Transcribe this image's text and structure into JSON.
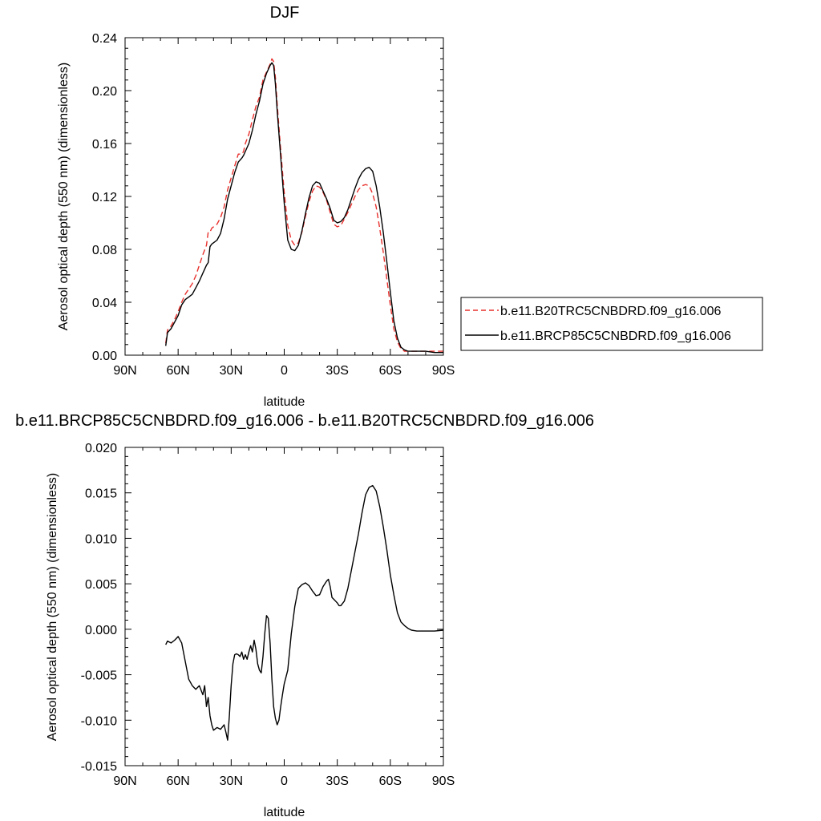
{
  "chart_data": [
    {
      "type": "line",
      "title": "DJF",
      "xlabel": "latitude",
      "ylabel": "Aerosol optical depth (550 nm) (dimensionless)",
      "xlim": [
        90,
        -90
      ],
      "ylim": [
        0.0,
        0.24
      ],
      "xticks": [
        90,
        60,
        30,
        0,
        -30,
        -60,
        -90
      ],
      "xtick_labels": [
        "90N",
        "60N",
        "30N",
        "0",
        "30S",
        "60S",
        "90S"
      ],
      "yticks": [
        0.0,
        0.04,
        0.08,
        0.12,
        0.16,
        0.2,
        0.24
      ],
      "ytick_labels": [
        "0.00",
        "0.04",
        "0.08",
        "0.12",
        "0.16",
        "0.20",
        "0.24"
      ],
      "legend_position": "right",
      "series": [
        {
          "name": "b.e11.B20TRC5CNBDRD.f09_g16.006",
          "color": "#e8302c",
          "dash": "dashed",
          "x": [
            67,
            66,
            64,
            62,
            60,
            58,
            56,
            54,
            52,
            50,
            48,
            46,
            44,
            43,
            42,
            41,
            40,
            38,
            36,
            34,
            32,
            30,
            28,
            26,
            24,
            23,
            22,
            20,
            18,
            16,
            14,
            12,
            10,
            8,
            7,
            6,
            5,
            4,
            2,
            0,
            -2,
            -4,
            -6,
            -8,
            -10,
            -12,
            -14,
            -16,
            -18,
            -20,
            -22,
            -24,
            -26,
            -28,
            -30,
            -32,
            -34,
            -36,
            -38,
            -40,
            -42,
            -44,
            -46,
            -48,
            -50,
            -52,
            -54,
            -56,
            -58,
            -60,
            -62,
            -64,
            -66,
            -68,
            -70,
            -72,
            -75,
            -80,
            -85,
            -90
          ],
          "y": [
            0.009,
            0.019,
            0.022,
            0.027,
            0.033,
            0.04,
            0.046,
            0.05,
            0.054,
            0.06,
            0.068,
            0.076,
            0.083,
            0.093,
            0.093,
            0.096,
            0.097,
            0.099,
            0.104,
            0.112,
            0.125,
            0.134,
            0.143,
            0.152,
            0.152,
            0.154,
            0.16,
            0.167,
            0.178,
            0.188,
            0.195,
            0.208,
            0.214,
            0.22,
            0.224,
            0.222,
            0.21,
            0.19,
            0.155,
            0.123,
            0.098,
            0.087,
            0.083,
            0.085,
            0.093,
            0.105,
            0.116,
            0.124,
            0.128,
            0.127,
            0.123,
            0.117,
            0.108,
            0.099,
            0.097,
            0.098,
            0.103,
            0.108,
            0.114,
            0.12,
            0.125,
            0.128,
            0.129,
            0.128,
            0.122,
            0.112,
            0.096,
            0.078,
            0.058,
            0.038,
            0.02,
            0.01,
            0.005,
            0.003,
            0.003,
            0.003,
            0.003,
            0.003,
            0.003,
            0.003
          ]
        },
        {
          "name": "b.e11.BRCP85C5CNBDRD.f09_g16.006",
          "color": "#000000",
          "dash": "solid",
          "x": [
            67,
            66,
            64,
            62,
            60,
            58,
            56,
            54,
            52,
            50,
            48,
            46,
            44,
            43,
            42,
            41,
            40,
            38,
            36,
            34,
            32,
            30,
            28,
            26,
            24,
            23,
            22,
            20,
            18,
            16,
            14,
            12,
            10,
            8,
            7,
            6,
            5,
            4,
            2,
            0,
            -2,
            -4,
            -6,
            -8,
            -10,
            -12,
            -14,
            -16,
            -18,
            -20,
            -22,
            -24,
            -26,
            -28,
            -30,
            -32,
            -34,
            -36,
            -38,
            -40,
            -42,
            -44,
            -46,
            -48,
            -50,
            -52,
            -54,
            -56,
            -58,
            -60,
            -62,
            -64,
            -66,
            -68,
            -70,
            -72,
            -75,
            -80,
            -85,
            -90
          ],
          "y": [
            0.007,
            0.017,
            0.02,
            0.025,
            0.03,
            0.038,
            0.042,
            0.044,
            0.046,
            0.051,
            0.056,
            0.062,
            0.068,
            0.07,
            0.082,
            0.084,
            0.085,
            0.087,
            0.092,
            0.103,
            0.118,
            0.128,
            0.138,
            0.146,
            0.149,
            0.151,
            0.154,
            0.16,
            0.17,
            0.182,
            0.192,
            0.205,
            0.213,
            0.219,
            0.221,
            0.219,
            0.205,
            0.185,
            0.15,
            0.115,
            0.087,
            0.08,
            0.079,
            0.083,
            0.094,
            0.107,
            0.119,
            0.128,
            0.131,
            0.13,
            0.124,
            0.118,
            0.111,
            0.102,
            0.1,
            0.101,
            0.104,
            0.11,
            0.118,
            0.126,
            0.133,
            0.138,
            0.141,
            0.142,
            0.139,
            0.128,
            0.112,
            0.093,
            0.071,
            0.048,
            0.026,
            0.013,
            0.006,
            0.004,
            0.003,
            0.003,
            0.003,
            0.003,
            0.002,
            0.002
          ]
        }
      ]
    },
    {
      "type": "line",
      "title": "b.e11.BRCP85C5CNBDRD.f09_g16.006 - b.e11.B20TRC5CNBDRD.f09_g16.006",
      "xlabel": "latitude",
      "ylabel": "Aerosol optical depth (550 nm) (dimensionless)",
      "xlim": [
        90,
        -90
      ],
      "ylim": [
        -0.015,
        0.02
      ],
      "xticks": [
        90,
        60,
        30,
        0,
        -30,
        -60,
        -90
      ],
      "xtick_labels": [
        "90N",
        "60N",
        "30N",
        "0",
        "30S",
        "60S",
        "90S"
      ],
      "yticks": [
        -0.015,
        -0.01,
        -0.005,
        0.0,
        0.005,
        0.01,
        0.015,
        0.02
      ],
      "ytick_labels": [
        "-0.015",
        "-0.010",
        "-0.005",
        "0.000",
        "0.005",
        "0.010",
        "0.015",
        "0.020"
      ],
      "series": [
        {
          "color": "#000000",
          "dash": "solid",
          "x": [
            67,
            66,
            64,
            62,
            60,
            58,
            56,
            54,
            52,
            50,
            48,
            46,
            45,
            44,
            43,
            42,
            41,
            40,
            38,
            36,
            34,
            33,
            32,
            31,
            30,
            29,
            28,
            27,
            26,
            25,
            24,
            23,
            22,
            21,
            20,
            19,
            18,
            17,
            16,
            15,
            14,
            13,
            12,
            11,
            10,
            9,
            8,
            7,
            6,
            5,
            4,
            3,
            2,
            1,
            0,
            -2,
            -4,
            -6,
            -8,
            -10,
            -12,
            -14,
            -16,
            -18,
            -20,
            -22,
            -24,
            -25,
            -26,
            -27,
            -28,
            -29,
            -30,
            -31,
            -32,
            -34,
            -36,
            -38,
            -40,
            -42,
            -44,
            -46,
            -48,
            -50,
            -52,
            -54,
            -56,
            -58,
            -60,
            -62,
            -64,
            -66,
            -68,
            -70,
            -72,
            -75,
            -80,
            -85,
            -90
          ],
          "y": [
            -0.0017,
            -0.0013,
            -0.0015,
            -0.0012,
            -0.0008,
            -0.0015,
            -0.0035,
            -0.0055,
            -0.0062,
            -0.0066,
            -0.0062,
            -0.0072,
            -0.0062,
            -0.0085,
            -0.0075,
            -0.0095,
            -0.0105,
            -0.0111,
            -0.0108,
            -0.011,
            -0.0105,
            -0.0113,
            -0.0122,
            -0.0095,
            -0.0062,
            -0.0038,
            -0.0028,
            -0.0027,
            -0.0028,
            -0.003,
            -0.0025,
            -0.0033,
            -0.0028,
            -0.0033,
            -0.0025,
            -0.0018,
            -0.0025,
            -0.0012,
            -0.0022,
            -0.0038,
            -0.0045,
            -0.0048,
            -0.003,
            -0.0005,
            0.0015,
            0.0012,
            -0.0015,
            -0.0055,
            -0.0085,
            -0.0098,
            -0.0105,
            -0.01,
            -0.0085,
            -0.0072,
            -0.006,
            -0.0045,
            -0.0005,
            0.0025,
            0.0045,
            0.0049,
            0.0051,
            0.0048,
            0.0042,
            0.0037,
            0.0038,
            0.0047,
            0.0053,
            0.0055,
            0.0047,
            0.0035,
            0.0033,
            0.0031,
            0.0029,
            0.0026,
            0.0026,
            0.0031,
            0.0045,
            0.0065,
            0.0085,
            0.0105,
            0.0128,
            0.0148,
            0.0156,
            0.0158,
            0.0152,
            0.0135,
            0.0113,
            0.0088,
            0.006,
            0.0038,
            0.0018,
            0.0008,
            0.0004,
            0.0001,
            -0.0001,
            -0.0002,
            -0.0002,
            -0.0002,
            -0.0001
          ]
        }
      ]
    }
  ]
}
